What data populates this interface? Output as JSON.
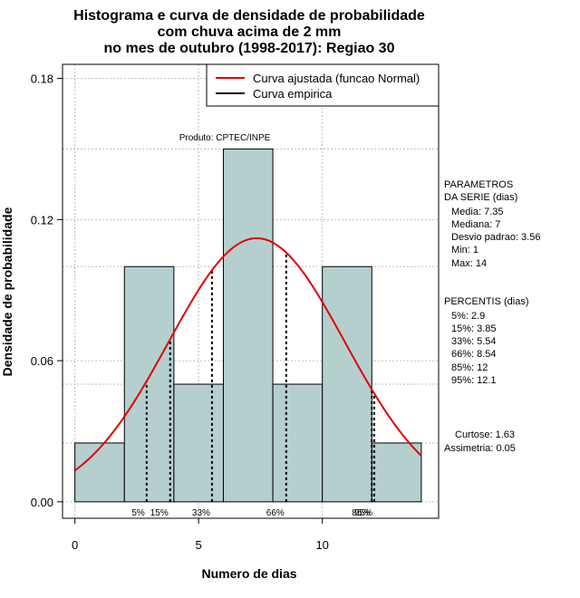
{
  "chart_data": {
    "type": "histogram",
    "title": [
      "Histograma e curva de densidade de probabilidade",
      "com chuva acima de 2 mm",
      "no mes de outubro (1998-2017): Regiao 30"
    ],
    "xlabel": "Numero de dias",
    "ylabel": "Densidade de probabilidade",
    "xlim": [
      -0.5,
      14.7
    ],
    "ylim": [
      -0.007,
      0.186
    ],
    "x_ticks": [
      0,
      5,
      10
    ],
    "x_tick_labels": [
      "0",
      "5",
      "10"
    ],
    "y_ticks": [
      0.0,
      0.06,
      0.12,
      0.18
    ],
    "y_tick_labels": [
      "0.00",
      "0.06",
      "0.12",
      "0.18"
    ],
    "grid": true,
    "hgrid": [
      0.0,
      0.025,
      0.05,
      0.06,
      0.1,
      0.12,
      0.15,
      0.18
    ],
    "bins": [
      {
        "from": 0,
        "to": 2,
        "density": 0.025
      },
      {
        "from": 2,
        "to": 4,
        "density": 0.1
      },
      {
        "from": 4,
        "to": 6,
        "density": 0.05
      },
      {
        "from": 6,
        "to": 8,
        "density": 0.15
      },
      {
        "from": 8,
        "to": 10,
        "density": 0.05
      },
      {
        "from": 10,
        "to": 12,
        "density": 0.1
      },
      {
        "from": 12,
        "to": 14,
        "density": 0.025
      }
    ],
    "bar_color": "#b5cfcf",
    "curve": {
      "type": "normal",
      "mean": 7.35,
      "sd": 3.56,
      "from": 0,
      "to": 14,
      "color": "#e00000"
    },
    "percentile_lines": [
      {
        "label": "5%",
        "x": 2.9
      },
      {
        "label": "15%",
        "x": 3.85
      },
      {
        "label": "33%",
        "x": 5.54
      },
      {
        "label": "66%",
        "x": 8.54
      },
      {
        "label": "85%",
        "x": 12
      },
      {
        "label": "95%",
        "x": 12.1
      }
    ],
    "annotation": "Produto: CPTEC/INPE",
    "legend": {
      "position": "top-right",
      "items": [
        {
          "label": "Curva ajustada (funcao Normal)",
          "color": "#e00000"
        },
        {
          "label": "Curva empirica",
          "color": "#000000"
        }
      ]
    },
    "stats": {
      "param_header": [
        "PARAMETROS",
        "DA SERIE (dias)"
      ],
      "params": [
        "Media: 7.35",
        "Mediana: 7",
        "Desvio padrao: 3.56",
        "Min: 1",
        "Max: 14"
      ],
      "perc_header": "PERCENTIS (dias)",
      "percentiles": [
        "5%: 2.9",
        "15%: 3.85",
        "33%: 5.54",
        "66%: 8.54",
        "85%: 12",
        "95%: 12.1"
      ],
      "curtose": "Curtose: 1.63",
      "assimetria": "Assimetria: 0.05"
    }
  }
}
